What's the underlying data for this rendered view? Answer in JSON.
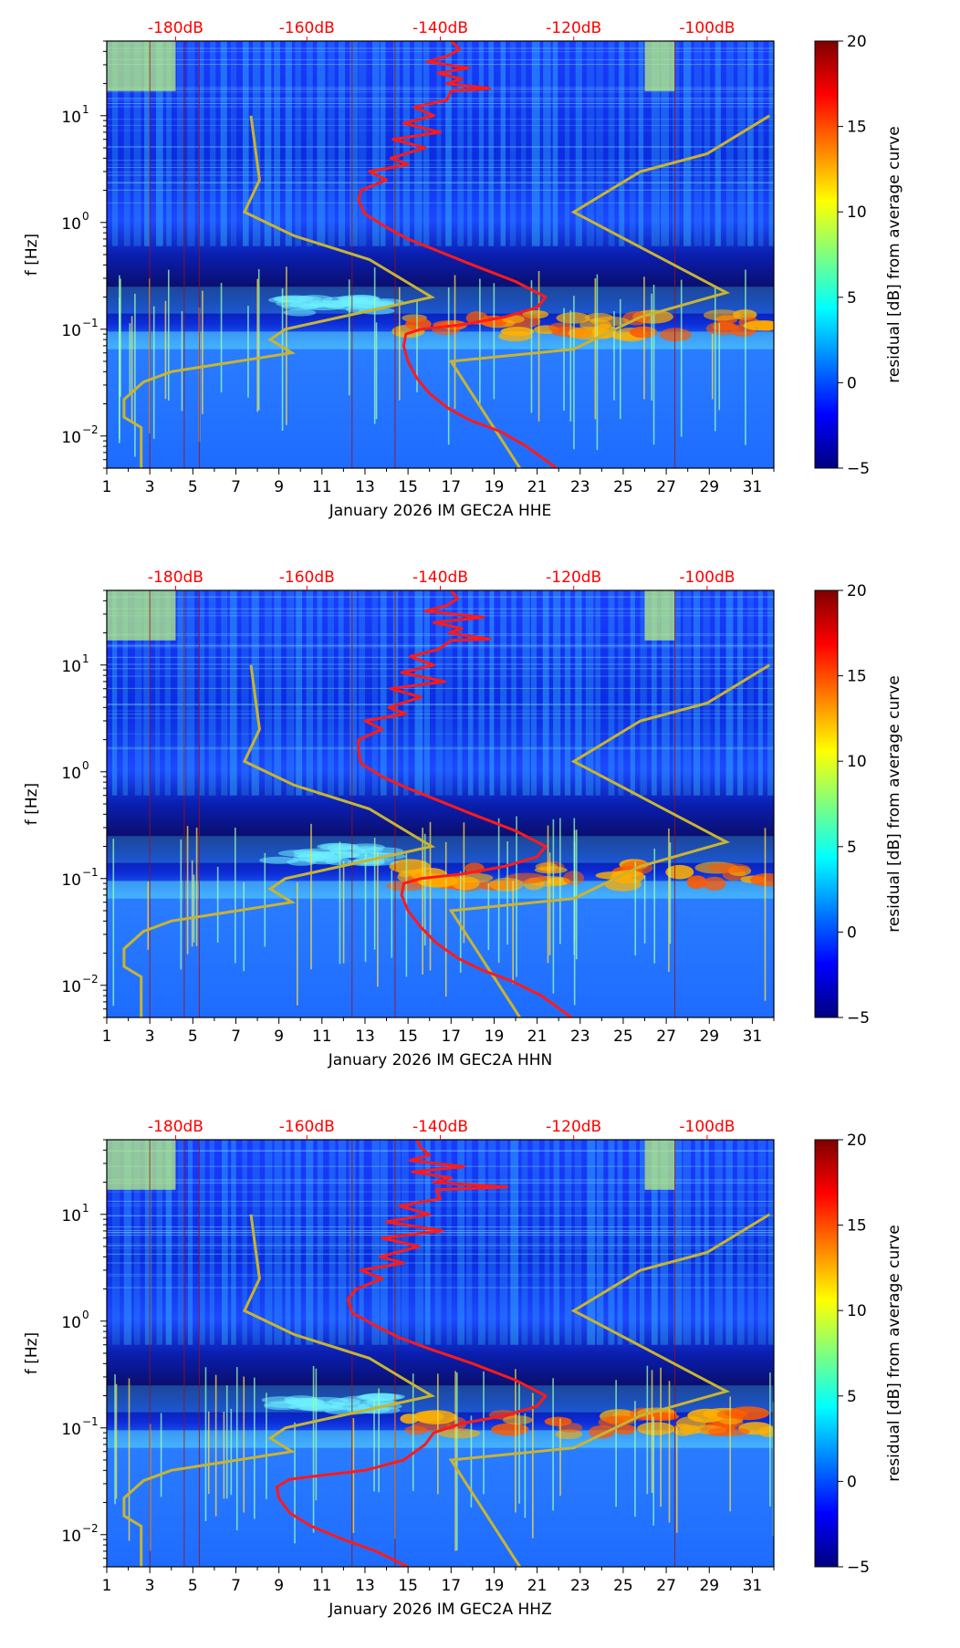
{
  "colors": {
    "jet": [
      "#00007f",
      "#0000ff",
      "#007fff",
      "#00ffff",
      "#7fff7f",
      "#ffff00",
      "#ff7f00",
      "#ff0000",
      "#7f0000"
    ],
    "red_curve": "#ff1a1a",
    "model_curve": "#c8b432",
    "top_ticks": "#ff0000"
  },
  "chart_data": [
    {
      "type": "heatmap",
      "channel": "HHE",
      "xlabel": "January 2026 IM GEC2A  HHE",
      "ylabel": "f [Hz]",
      "xlim": [
        1,
        32
      ],
      "ylim": [
        0.005,
        50
      ],
      "yscale": "log",
      "xticks": [
        "1",
        "3",
        "5",
        "7",
        "9",
        "11",
        "13",
        "15",
        "17",
        "19",
        "21",
        "23",
        "25",
        "27",
        "29",
        "31"
      ],
      "yticks": [
        {
          "label": "10",
          "exp": "1",
          "value": 10
        },
        {
          "label": "10",
          "exp": "0",
          "value": 1
        },
        {
          "label": "10",
          "exp": "−1",
          "value": 0.1
        },
        {
          "label": "10",
          "exp": "−2",
          "value": 0.01
        }
      ],
      "top_axis_ticks": [
        "-180dB",
        "-160dB",
        "-140dB",
        "-120dB",
        "-100dB"
      ],
      "top_axis_values": [
        -180,
        -160,
        -140,
        -120,
        -100
      ],
      "top_axis_at_day": [
        4.2,
        10.3,
        16.5,
        22.7,
        28.9
      ],
      "colorbar": {
        "label": "residual [dB] from average curve",
        "range": [
          -5,
          20
        ],
        "ticks": [
          "20",
          "15",
          "10",
          "5",
          "0",
          "−5"
        ]
      },
      "model_curves": [
        {
          "name": "",
          "points": [
            [
              2.6,
              0.005
            ],
            [
              2.6,
              0.012
            ],
            [
              1.8,
              0.015
            ],
            [
              1.8,
              0.022
            ],
            [
              2.7,
              0.032
            ],
            [
              4.0,
              0.04
            ],
            [
              9.6,
              0.06
            ],
            [
              8.6,
              0.08
            ],
            [
              9.3,
              0.1
            ],
            [
              16.1,
              0.2
            ],
            [
              13.2,
              0.45
            ],
            [
              9.7,
              0.75
            ],
            [
              7.4,
              1.25
            ],
            [
              8.1,
              2.5
            ],
            [
              8.0,
              3.5
            ],
            [
              7.7,
              10
            ]
          ]
        },
        {
          "name": "",
          "points": [
            [
              20.2,
              0.005
            ],
            [
              17.0,
              0.05
            ],
            [
              22.7,
              0.065
            ],
            [
              25.8,
              0.13
            ],
            [
              29.8,
              0.22
            ],
            [
              22.7,
              1.25
            ],
            [
              25.8,
              3.0
            ],
            [
              28.9,
              4.4
            ],
            [
              31.8,
              10
            ]
          ]
        }
      ],
      "residual_curve": [
        [
          21.9,
          0.005
        ],
        [
          20.5,
          0.008
        ],
        [
          19.3,
          0.011
        ],
        [
          17.9,
          0.014
        ],
        [
          16.9,
          0.018
        ],
        [
          16.0,
          0.025
        ],
        [
          15.4,
          0.035
        ],
        [
          15.0,
          0.05
        ],
        [
          14.8,
          0.07
        ],
        [
          14.9,
          0.09
        ],
        [
          15.6,
          0.1
        ],
        [
          17.5,
          0.11
        ],
        [
          19.5,
          0.13
        ],
        [
          21.0,
          0.16
        ],
        [
          21.4,
          0.2
        ],
        [
          20.0,
          0.28
        ],
        [
          18.0,
          0.4
        ],
        [
          16.3,
          0.55
        ],
        [
          15.0,
          0.7
        ],
        [
          14.0,
          0.9
        ],
        [
          13.0,
          1.2
        ],
        [
          12.7,
          1.6
        ],
        [
          12.8,
          2.0
        ],
        [
          14.0,
          2.5
        ],
        [
          13.2,
          3.0
        ],
        [
          15.0,
          3.5
        ],
        [
          14.2,
          4.0
        ],
        [
          15.8,
          5.0
        ],
        [
          14.3,
          6.0
        ],
        [
          16.5,
          7.0
        ],
        [
          14.8,
          8.5
        ],
        [
          16.2,
          10
        ],
        [
          15.3,
          12
        ],
        [
          16.8,
          14
        ],
        [
          17.0,
          17
        ],
        [
          18.8,
          18
        ],
        [
          16.8,
          20
        ],
        [
          17.5,
          22
        ],
        [
          16.4,
          25
        ],
        [
          17.8,
          28
        ],
        [
          15.9,
          32
        ],
        [
          16.8,
          36
        ],
        [
          17.4,
          42
        ],
        [
          17.0,
          50
        ]
      ],
      "hot_band": {
        "freq_range": [
          0.085,
          0.14
        ],
        "day_range": [
          14.8,
          32
        ]
      }
    },
    {
      "type": "heatmap",
      "channel": "HHN",
      "xlabel": "January 2026 IM GEC2A  HHN",
      "ylabel": "f [Hz]",
      "xlim": [
        1,
        32
      ],
      "ylim": [
        0.005,
        50
      ],
      "yscale": "log",
      "xticks": [
        "1",
        "3",
        "5",
        "7",
        "9",
        "11",
        "13",
        "15",
        "17",
        "19",
        "21",
        "23",
        "25",
        "27",
        "29",
        "31"
      ],
      "yticks": [
        {
          "label": "10",
          "exp": "1",
          "value": 10
        },
        {
          "label": "10",
          "exp": "0",
          "value": 1
        },
        {
          "label": "10",
          "exp": "−1",
          "value": 0.1
        },
        {
          "label": "10",
          "exp": "−2",
          "value": 0.01
        }
      ],
      "top_axis_ticks": [
        "-180dB",
        "-160dB",
        "-140dB",
        "-120dB",
        "-100dB"
      ],
      "top_axis_values": [
        -180,
        -160,
        -140,
        -120,
        -100
      ],
      "top_axis_at_day": [
        4.2,
        10.3,
        16.5,
        22.7,
        28.9
      ],
      "colorbar": {
        "label": "residual [dB] from average curve",
        "range": [
          -5,
          20
        ],
        "ticks": [
          "20",
          "15",
          "10",
          "5",
          "0",
          "−5"
        ]
      },
      "model_curves": [
        {
          "name": "",
          "points": [
            [
              2.6,
              0.005
            ],
            [
              2.6,
              0.012
            ],
            [
              1.8,
              0.015
            ],
            [
              1.8,
              0.022
            ],
            [
              2.7,
              0.032
            ],
            [
              4.0,
              0.04
            ],
            [
              9.6,
              0.06
            ],
            [
              8.6,
              0.08
            ],
            [
              9.3,
              0.1
            ],
            [
              16.1,
              0.2
            ],
            [
              13.2,
              0.45
            ],
            [
              9.7,
              0.75
            ],
            [
              7.4,
              1.25
            ],
            [
              8.1,
              2.5
            ],
            [
              8.0,
              3.5
            ],
            [
              7.7,
              10
            ]
          ]
        },
        {
          "name": "",
          "points": [
            [
              20.2,
              0.005
            ],
            [
              17.0,
              0.05
            ],
            [
              22.7,
              0.065
            ],
            [
              25.8,
              0.13
            ],
            [
              29.8,
              0.22
            ],
            [
              22.7,
              1.25
            ],
            [
              25.8,
              3.0
            ],
            [
              28.9,
              4.4
            ],
            [
              31.8,
              10
            ]
          ]
        }
      ],
      "residual_curve": [
        [
          22.6,
          0.005
        ],
        [
          21.2,
          0.008
        ],
        [
          19.8,
          0.011
        ],
        [
          18.4,
          0.014
        ],
        [
          17.3,
          0.018
        ],
        [
          16.3,
          0.025
        ],
        [
          15.6,
          0.035
        ],
        [
          15.0,
          0.05
        ],
        [
          14.7,
          0.07
        ],
        [
          14.8,
          0.09
        ],
        [
          15.6,
          0.1
        ],
        [
          17.5,
          0.11
        ],
        [
          19.5,
          0.13
        ],
        [
          21.0,
          0.16
        ],
        [
          21.4,
          0.2
        ],
        [
          20.0,
          0.28
        ],
        [
          18.0,
          0.4
        ],
        [
          16.3,
          0.55
        ],
        [
          15.0,
          0.7
        ],
        [
          13.8,
          0.9
        ],
        [
          12.8,
          1.2
        ],
        [
          12.7,
          1.6
        ],
        [
          12.7,
          2.0
        ],
        [
          13.8,
          2.5
        ],
        [
          13.0,
          3.0
        ],
        [
          14.9,
          3.5
        ],
        [
          14.1,
          4.0
        ],
        [
          15.6,
          5.0
        ],
        [
          14.2,
          6.0
        ],
        [
          16.7,
          7.0
        ],
        [
          14.7,
          8.5
        ],
        [
          16.2,
          10
        ],
        [
          15.1,
          12
        ],
        [
          16.4,
          14
        ],
        [
          17.0,
          17
        ],
        [
          18.8,
          17.5
        ],
        [
          16.9,
          20
        ],
        [
          17.5,
          22
        ],
        [
          16.2,
          25
        ],
        [
          18.5,
          28
        ],
        [
          15.8,
          32
        ],
        [
          16.8,
          36
        ],
        [
          17.3,
          42
        ],
        [
          17.0,
          50
        ]
      ],
      "hot_band": {
        "freq_range": [
          0.085,
          0.14
        ],
        "day_range": [
          14.8,
          32
        ]
      }
    },
    {
      "type": "heatmap",
      "channel": "HHZ",
      "xlabel": "January 2026 IM GEC2A  HHZ",
      "ylabel": "f [Hz]",
      "xlim": [
        1,
        32
      ],
      "ylim": [
        0.005,
        50
      ],
      "yscale": "log",
      "xticks": [
        "1",
        "3",
        "5",
        "7",
        "9",
        "11",
        "13",
        "15",
        "17",
        "19",
        "21",
        "23",
        "25",
        "27",
        "29",
        "31"
      ],
      "yticks": [
        {
          "label": "10",
          "exp": "1",
          "value": 10
        },
        {
          "label": "10",
          "exp": "0",
          "value": 1
        },
        {
          "label": "10",
          "exp": "−1",
          "value": 0.1
        },
        {
          "label": "10",
          "exp": "−2",
          "value": 0.01
        }
      ],
      "top_axis_ticks": [
        "-180dB",
        "-160dB",
        "-140dB",
        "-120dB",
        "-100dB"
      ],
      "top_axis_values": [
        -180,
        -160,
        -140,
        -120,
        -100
      ],
      "top_axis_at_day": [
        4.2,
        10.3,
        16.5,
        22.7,
        28.9
      ],
      "colorbar": {
        "label": "residual [dB] from average curve",
        "range": [
          -5,
          20
        ],
        "ticks": [
          "20",
          "15",
          "10",
          "5",
          "0",
          "−5"
        ]
      },
      "model_curves": [
        {
          "name": "",
          "points": [
            [
              2.6,
              0.005
            ],
            [
              2.6,
              0.012
            ],
            [
              1.8,
              0.015
            ],
            [
              1.8,
              0.022
            ],
            [
              2.7,
              0.032
            ],
            [
              4.0,
              0.04
            ],
            [
              9.6,
              0.06
            ],
            [
              8.6,
              0.08
            ],
            [
              9.3,
              0.1
            ],
            [
              16.1,
              0.2
            ],
            [
              13.2,
              0.45
            ],
            [
              9.7,
              0.75
            ],
            [
              7.4,
              1.25
            ],
            [
              8.1,
              2.5
            ],
            [
              8.0,
              3.5
            ],
            [
              7.7,
              10
            ]
          ]
        },
        {
          "name": "",
          "points": [
            [
              20.2,
              0.005
            ],
            [
              17.0,
              0.05
            ],
            [
              22.7,
              0.065
            ],
            [
              25.8,
              0.13
            ],
            [
              29.8,
              0.22
            ],
            [
              22.7,
              1.25
            ],
            [
              25.8,
              3.0
            ],
            [
              28.9,
              4.4
            ],
            [
              31.8,
              10
            ]
          ]
        }
      ],
      "residual_curve": [
        [
          15.0,
          0.005
        ],
        [
          13.5,
          0.007
        ],
        [
          12.0,
          0.009
        ],
        [
          10.5,
          0.012
        ],
        [
          9.5,
          0.016
        ],
        [
          9.0,
          0.022
        ],
        [
          8.9,
          0.028
        ],
        [
          9.5,
          0.033
        ],
        [
          11.0,
          0.036
        ],
        [
          13.0,
          0.04
        ],
        [
          14.8,
          0.05
        ],
        [
          15.8,
          0.07
        ],
        [
          16.2,
          0.09
        ],
        [
          17.5,
          0.11
        ],
        [
          19.5,
          0.13
        ],
        [
          21.0,
          0.16
        ],
        [
          21.4,
          0.2
        ],
        [
          20.0,
          0.28
        ],
        [
          18.0,
          0.4
        ],
        [
          16.0,
          0.55
        ],
        [
          14.6,
          0.7
        ],
        [
          13.5,
          0.9
        ],
        [
          12.4,
          1.2
        ],
        [
          12.2,
          1.6
        ],
        [
          12.6,
          2.0
        ],
        [
          13.8,
          2.5
        ],
        [
          12.8,
          3.0
        ],
        [
          14.8,
          3.5
        ],
        [
          13.7,
          4.0
        ],
        [
          15.5,
          5.0
        ],
        [
          13.8,
          6.0
        ],
        [
          16.6,
          7.0
        ],
        [
          14.0,
          8.5
        ],
        [
          16.0,
          10
        ],
        [
          14.6,
          12
        ],
        [
          16.5,
          14
        ],
        [
          16.3,
          17
        ],
        [
          19.6,
          18
        ],
        [
          16.2,
          20
        ],
        [
          17.0,
          22
        ],
        [
          15.2,
          25
        ],
        [
          17.6,
          28
        ],
        [
          15.1,
          32
        ],
        [
          16.0,
          36
        ],
        [
          15.6,
          42
        ],
        [
          15.4,
          50
        ]
      ],
      "hot_band": {
        "freq_range": [
          0.085,
          0.14
        ],
        "day_range": [
          14.8,
          32
        ]
      }
    }
  ]
}
